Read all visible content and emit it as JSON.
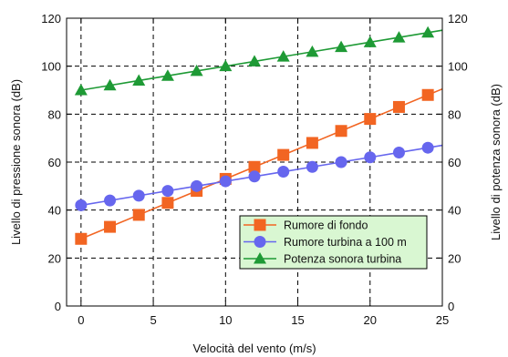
{
  "chart_data": {
    "type": "line",
    "title": "",
    "xlabel": "Velocità del vento (m/s)",
    "ylabel_left": "Livello di pressione sonora (dB)",
    "ylabel_right": "Livello di potenza sonora (dB)",
    "xlim": [
      -1,
      25
    ],
    "ylim": [
      0,
      120
    ],
    "x_ticks": [
      0,
      5,
      10,
      15,
      20,
      25
    ],
    "y_ticks": [
      0,
      20,
      40,
      60,
      80,
      100,
      120
    ],
    "grid": "dashed",
    "legend_position": "lower-right",
    "legend_background": "#d9f7d2",
    "series": [
      {
        "name": "Rumore di fondo",
        "color": "#f26522",
        "marker": "square",
        "x": [
          0,
          2,
          4,
          6,
          8,
          10,
          12,
          14,
          16,
          18,
          20,
          22,
          24
        ],
        "y": [
          28,
          33,
          38,
          43,
          48,
          53,
          58,
          63,
          68,
          73,
          78,
          83,
          88
        ]
      },
      {
        "name": "Rumore turbina a 100 m",
        "color": "#6666ee",
        "marker": "circle",
        "x": [
          0,
          2,
          4,
          6,
          8,
          10,
          12,
          14,
          16,
          18,
          20,
          22,
          24
        ],
        "y": [
          42,
          44,
          46,
          48,
          50,
          52,
          54,
          56,
          58,
          60,
          62,
          64,
          66
        ]
      },
      {
        "name": "Potenza sonora turbina",
        "color": "#1e9a35",
        "marker": "triangle",
        "x": [
          0,
          2,
          4,
          6,
          8,
          10,
          12,
          14,
          16,
          18,
          20,
          22,
          24
        ],
        "y": [
          90,
          92,
          94,
          96,
          98,
          100,
          102,
          104,
          106,
          108,
          110,
          112,
          114
        ]
      }
    ]
  }
}
